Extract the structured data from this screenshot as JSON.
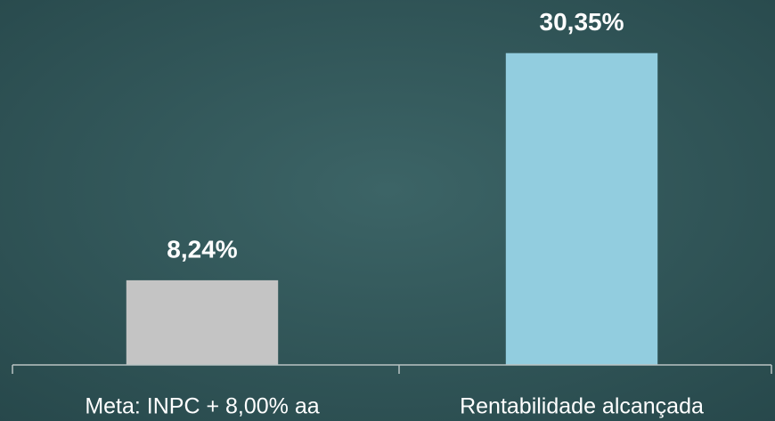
{
  "chart_data": {
    "type": "bar",
    "categories": [
      "Meta: INPC + 8,00% aa",
      "Rentabilidade alcançada"
    ],
    "values": [
      8.24,
      30.35
    ],
    "value_labels": [
      "8,24%",
      "30,35%"
    ],
    "colors": [
      "#c4c4c4",
      "#92cddf"
    ],
    "ylim": [
      0,
      35
    ]
  }
}
